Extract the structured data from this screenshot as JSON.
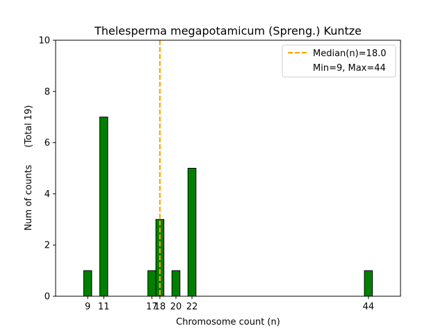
{
  "chart_data": {
    "type": "bar",
    "title": "Thelesperma megapotamicum (Spreng.) Kuntze",
    "xlabel": "Chromosome count (n)",
    "ylabel": "Num of counts      (Total 19)",
    "ylim": [
      0,
      10
    ],
    "xlim": [
      5,
      48
    ],
    "yticks": [
      0,
      2,
      4,
      6,
      8,
      10
    ],
    "xticks": [
      9,
      11,
      17,
      18,
      20,
      22,
      44
    ],
    "x": [
      9,
      11,
      17,
      18,
      20,
      22,
      44
    ],
    "values": [
      1,
      7,
      1,
      3,
      1,
      5,
      1
    ],
    "bar_width": 1,
    "bar_color": "#008000",
    "median": 18.0,
    "median_color": "#FFA500",
    "legend": {
      "position": "top-right",
      "entries": [
        "Median(n)=18.0",
        "Min=9, Max=44"
      ]
    },
    "grid": false
  }
}
